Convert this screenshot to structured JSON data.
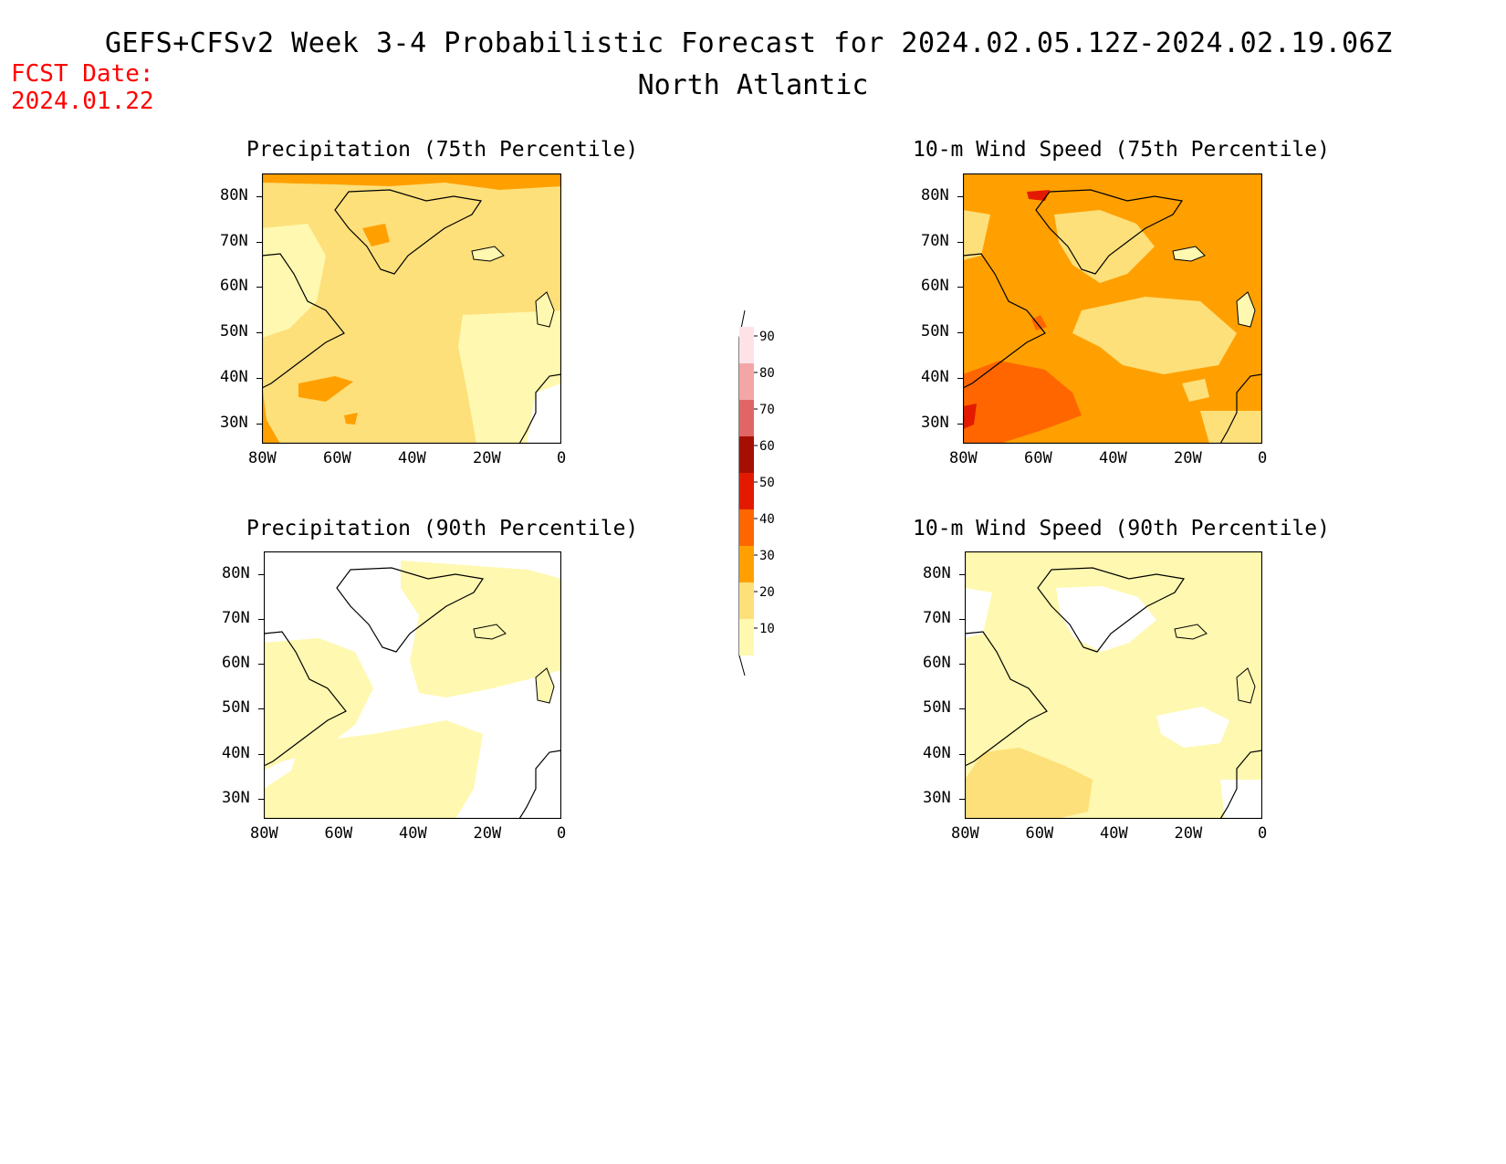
{
  "header": {
    "title": "GEFS+CFSv2 Week 3-4 Probabilistic Forecast for 2024.02.05.12Z-2024.02.19.06Z",
    "region": "North Atlantic",
    "fcst_label": "FCST Date:",
    "fcst_date": "2024.01.22"
  },
  "panels": [
    {
      "title": "Precipitation (75th Percentile)"
    },
    {
      "title": "10-m Wind Speed (75th Percentile)"
    },
    {
      "title": "Precipitation (90th Percentile)"
    },
    {
      "title": "10-m Wind Speed (90th Percentile)"
    }
  ],
  "axes": {
    "lat_labels": [
      "80N",
      "70N",
      "60N",
      "50N",
      "40N",
      "30N"
    ],
    "lon_labels": [
      "80W",
      "60W",
      "40W",
      "20W",
      "0"
    ]
  },
  "colorbar": {
    "levels": [
      "90",
      "80",
      "70",
      "60",
      "50",
      "40",
      "30",
      "20",
      "10"
    ],
    "colors": [
      "#fde3e8",
      "#f4a6a6",
      "#e06666",
      "#a50f00",
      "#e31a00",
      "#ff6600",
      "#ffa000",
      "#fde07a",
      "#fff8b0"
    ]
  },
  "colors": {
    "fcst_text": "#ff0000",
    "shade_10": "#fff8b0",
    "shade_20": "#fde07a",
    "shade_30": "#ffa000",
    "shade_40": "#ff6600",
    "shade_50": "#e31a00"
  }
}
